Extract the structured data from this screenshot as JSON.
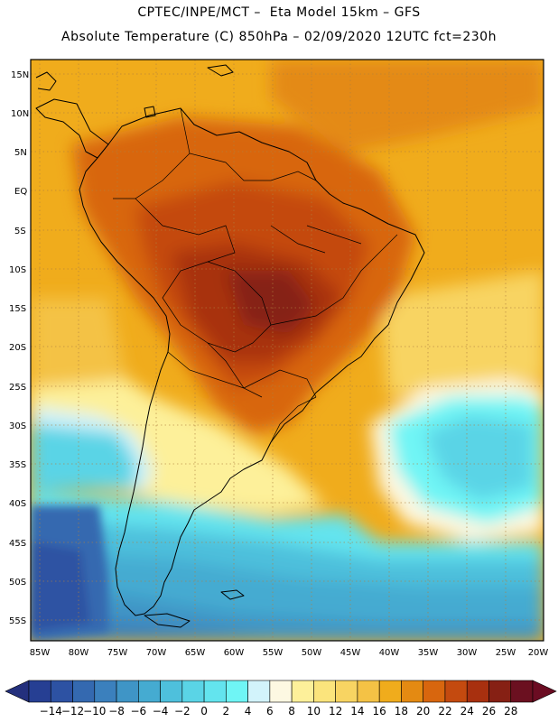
{
  "header": {
    "line1": "CPTEC/INPE/MCT –  Eta Model 15km – GFS",
    "line2": "Absolute Temperature (C) 850hPa – 02/09/2020 12UTC fct=230h"
  },
  "axes": {
    "lat_labels": [
      "15N",
      "10N",
      "5N",
      "EQ",
      "5S",
      "10S",
      "15S",
      "20S",
      "25S",
      "30S",
      "35S",
      "40S",
      "45S",
      "50S",
      "55S"
    ],
    "lon_labels": [
      "85W",
      "80W",
      "75W",
      "70W",
      "65W",
      "60W",
      "55W",
      "50W",
      "45W",
      "40W",
      "35W",
      "30W",
      "25W",
      "20W"
    ]
  },
  "colorbar": {
    "labels": [
      "-14",
      "-12",
      "-10",
      "-8",
      "-6",
      "-4",
      "-2",
      "0",
      "2",
      "4",
      "6",
      "8",
      "10",
      "12",
      "14",
      "16",
      "18",
      "20",
      "22",
      "24",
      "26",
      "28"
    ],
    "colors": [
      "#263f93",
      "#2d52a3",
      "#3469b0",
      "#3b80bd",
      "#3f95c6",
      "#45abd1",
      "#4ec0dc",
      "#5ad4e6",
      "#63e4ee",
      "#6ff5f5",
      "#d2f3fb",
      "#fdf8e2",
      "#fdf09a",
      "#fbe47c",
      "#f8d462",
      "#f4c245",
      "#f0ac1c",
      "#e48a12",
      "#d8660e",
      "#c44a0f",
      "#a8300f",
      "#862014",
      "#6b1020"
    ],
    "under_color": "#24307d",
    "over_color": "#6b0c22"
  },
  "legend": {
    "variable": "Absolute Temperature",
    "unit": "C",
    "level": "850hPa"
  }
}
